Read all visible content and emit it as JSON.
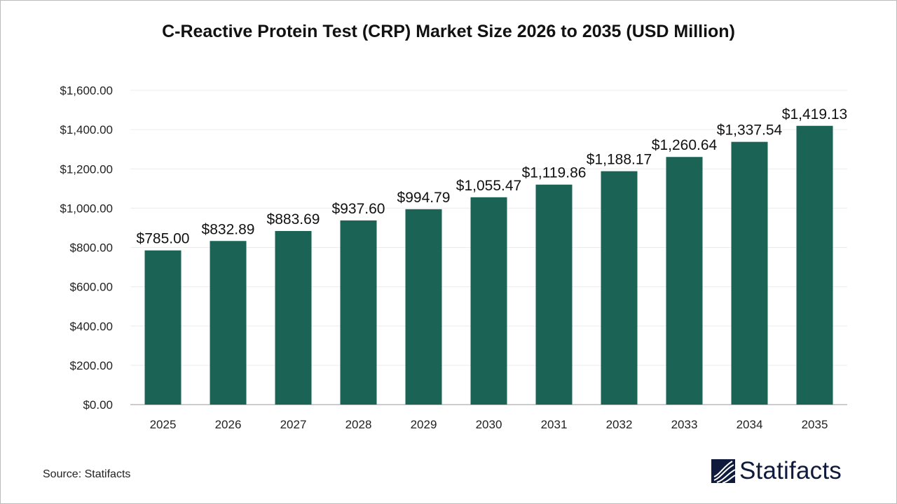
{
  "chart_data": {
    "type": "bar",
    "title": "C-Reactive Protein Test (CRP) Market Size 2026 to 2035 (USD Million)",
    "categories": [
      "2025",
      "2026",
      "2027",
      "2028",
      "2029",
      "2030",
      "2031",
      "2032",
      "2033",
      "2034",
      "2035"
    ],
    "values": [
      785.0,
      832.89,
      883.69,
      937.6,
      994.79,
      1055.47,
      1119.86,
      1188.17,
      1260.64,
      1337.54,
      1419.13
    ],
    "data_labels": [
      "$785.00",
      "$832.89",
      "$883.69",
      "$937.60",
      "$994.79",
      "$1,055.47",
      "$1,119.86",
      "$1,188.17",
      "$1,260.64",
      "$1,337.54",
      "$1,419.13"
    ],
    "yticks": [
      "$0.00",
      "$200.00",
      "$400.00",
      "$600.00",
      "$800.00",
      "$1,000.00",
      "$1,200.00",
      "$1,400.00",
      "$1,600.00"
    ],
    "ylim": [
      0,
      1600
    ],
    "xlabel": "",
    "ylabel": "",
    "grid": true,
    "bar_color": "#1a6355"
  },
  "source": "Source: Statifacts",
  "logo": "Statifacts"
}
